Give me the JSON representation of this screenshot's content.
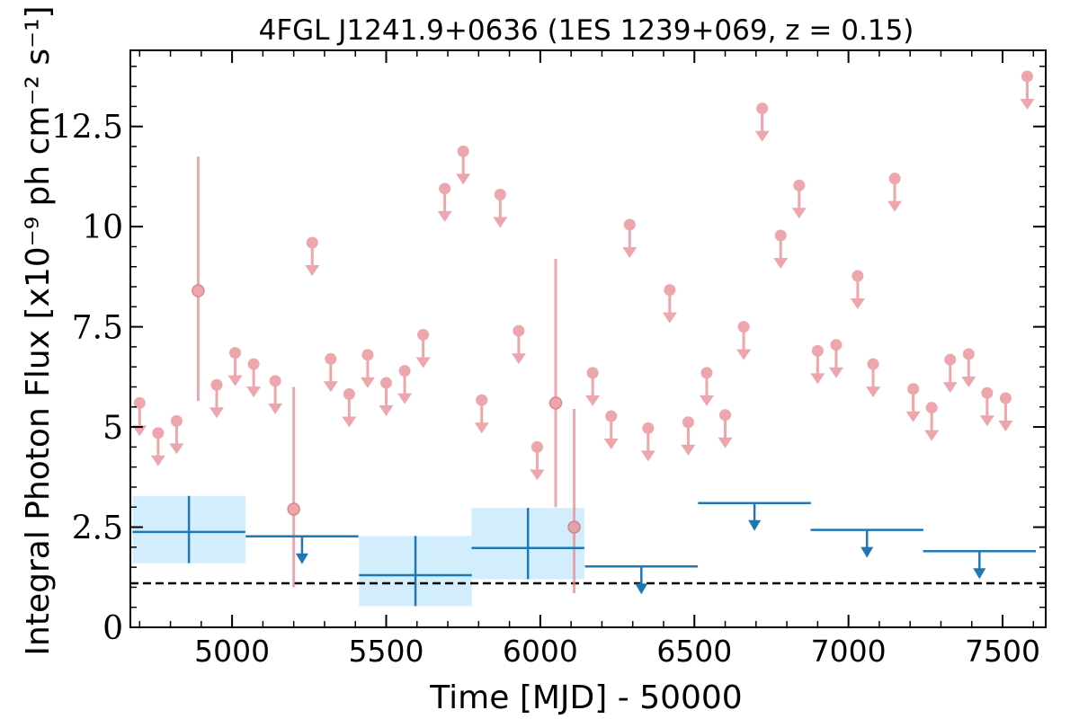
{
  "chart_data": {
    "type": "scatter",
    "title": "4FGL J1241.9+0636 (1ES 1239+069, z = 0.15)",
    "xlabel": "Time [MJD] - 50000",
    "ylabel": "Integral Photon Flux [x10⁻⁹ ph cm⁻² s⁻¹]",
    "xlim": [
      4670,
      7640
    ],
    "ylim": [
      0,
      14.4
    ],
    "x_ticks": [
      5000,
      5500,
      6000,
      6500,
      7000,
      7500
    ],
    "x_tick_labels": [
      "5000",
      "5500",
      "6000",
      "6500",
      "7000",
      "7500"
    ],
    "y_ticks": [
      0,
      2.5,
      5,
      7.5,
      10,
      12.5
    ],
    "y_tick_labels": [
      "0",
      "2.5",
      "5",
      "7.5",
      "10",
      "12.5"
    ],
    "grid": false,
    "reference_line": {
      "y": 1.1,
      "style": "dashed",
      "color": "#000000"
    },
    "series": [
      {
        "kind": "short-bin-upper-limits",
        "color": "#e8898f",
        "x": [
          4700,
          4760,
          4820,
          4950,
          5010,
          5070,
          5140,
          5260,
          5320,
          5380,
          5440,
          5500,
          5560,
          5620,
          5690,
          5750,
          5810,
          5870,
          5930,
          5990,
          6170,
          6230,
          6290,
          6350,
          6420,
          6480,
          6540,
          6600,
          6660,
          6720,
          6780,
          6840,
          6900,
          6960,
          7030,
          7080,
          7150,
          7210,
          7270,
          7330,
          7390,
          7450,
          7510,
          7580
        ],
        "y": [
          5.6,
          4.85,
          5.15,
          6.05,
          6.85,
          6.57,
          6.15,
          9.6,
          6.7,
          5.82,
          6.8,
          6.1,
          6.4,
          7.3,
          10.95,
          11.88,
          5.67,
          10.8,
          7.4,
          4.5,
          6.35,
          5.27,
          10.05,
          4.97,
          8.42,
          5.12,
          6.35,
          5.3,
          7.5,
          12.95,
          9.78,
          11.03,
          6.9,
          7.05,
          8.77,
          6.57,
          11.2,
          5.95,
          5.48,
          6.68,
          6.82,
          5.85,
          5.72,
          13.75
        ]
      },
      {
        "kind": "short-bin-detections",
        "color": "#e8898f",
        "x": [
          4890,
          5200,
          6050,
          6110
        ],
        "y": [
          8.4,
          2.95,
          5.6,
          2.5
        ],
        "err_low": [
          2.75,
          1.95,
          2.6,
          1.65
        ],
        "err_high": [
          3.35,
          3.05,
          3.6,
          2.95
        ]
      },
      {
        "kind": "long-bin-detections",
        "color": "#1f77b4",
        "band_color": "#d2eefc",
        "x": [
          4860,
          5595,
          5960
        ],
        "x_half_width": [
          183,
          183,
          183
        ],
        "y": [
          2.38,
          1.3,
          1.98
        ],
        "y_low": [
          1.6,
          0.53,
          1.2
        ],
        "y_high": [
          3.28,
          2.28,
          2.98
        ]
      },
      {
        "kind": "long-bin-upper-limits",
        "color": "#1f77b4",
        "x": [
          5227,
          6328,
          6695,
          7060,
          7425
        ],
        "x_half_width": [
          183,
          183,
          183,
          183,
          183
        ],
        "y": [
          2.27,
          1.52,
          3.1,
          2.43,
          1.9
        ]
      }
    ]
  }
}
